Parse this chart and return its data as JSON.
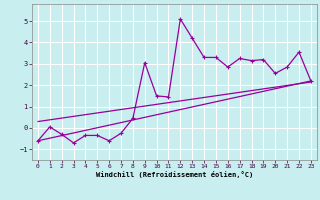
{
  "xlabel": "Windchill (Refroidissement éolien,°C)",
  "xlim": [
    -0.5,
    23.5
  ],
  "ylim": [
    -1.5,
    5.8
  ],
  "yticks": [
    -1,
    0,
    1,
    2,
    3,
    4,
    5
  ],
  "xticks": [
    0,
    1,
    2,
    3,
    4,
    5,
    6,
    7,
    8,
    9,
    10,
    11,
    12,
    13,
    14,
    15,
    16,
    17,
    18,
    19,
    20,
    21,
    22,
    23
  ],
  "bg_color": "#c8eef0",
  "grid_color": "#ffffff",
  "line_color": "#990099",
  "line1_x": [
    0,
    1,
    2,
    3,
    4,
    5,
    6,
    7,
    8,
    9,
    10,
    11,
    12,
    13,
    14,
    15,
    16,
    17,
    18,
    19,
    20,
    21,
    22,
    23
  ],
  "line1_y": [
    -0.6,
    0.05,
    -0.3,
    -0.7,
    -0.35,
    -0.35,
    -0.6,
    -0.25,
    0.45,
    3.05,
    1.5,
    1.45,
    5.1,
    4.2,
    3.3,
    3.3,
    2.85,
    3.25,
    3.15,
    3.2,
    2.55,
    2.85,
    3.55,
    2.2
  ],
  "line2_x": [
    0,
    23
  ],
  "line2_y": [
    -0.6,
    2.2
  ],
  "line3_x": [
    0,
    23
  ],
  "line3_y": [
    0.3,
    2.15
  ]
}
